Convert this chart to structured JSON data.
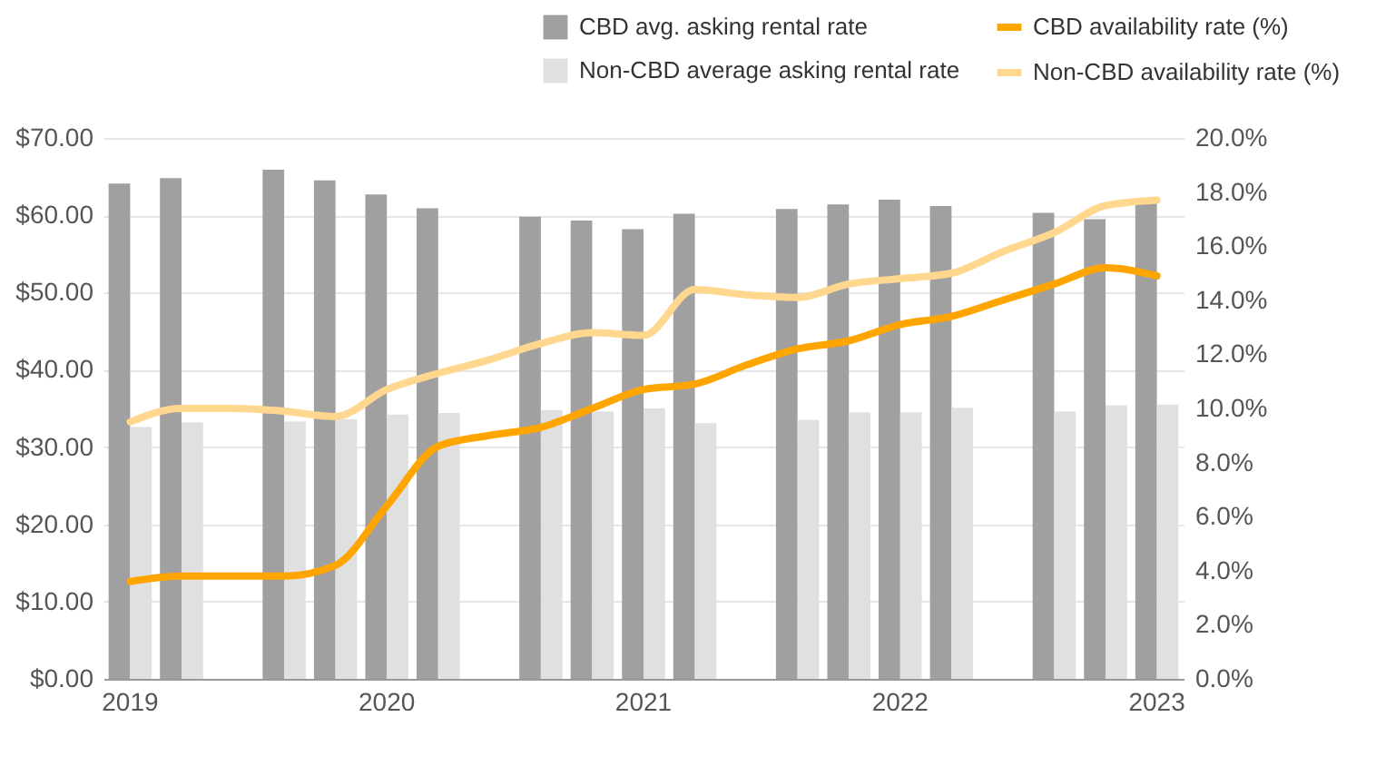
{
  "chart_data": {
    "type": "bar",
    "categories": [
      "2019",
      null,
      null,
      null,
      null,
      "2020",
      null,
      null,
      null,
      null,
      "2021",
      null,
      null,
      null,
      null,
      "2022",
      null,
      null,
      null,
      null,
      "2023"
    ],
    "series": [
      {
        "name": "CBD avg. asking rental rate",
        "color": "#a0a0a0",
        "values": [
          64.1,
          64.8,
          null,
          65.9,
          64.5,
          62.7,
          60.9,
          null,
          59.8,
          59.3,
          58.2,
          60.2,
          null,
          60.8,
          61.4,
          62.0,
          61.2,
          null,
          60.3,
          59.5,
          61.6
        ]
      },
      {
        "name": "Non-CBD average asking rental rate",
        "color": "#e0e0e0",
        "values": [
          32.6,
          33.2,
          null,
          33.3,
          33.6,
          34.2,
          34.4,
          null,
          34.8,
          34.6,
          35.0,
          33.1,
          null,
          33.5,
          34.5,
          34.5,
          35.1,
          null,
          34.6,
          35.4,
          35.5
        ]
      },
      {
        "name": "CBD availability rate (%)",
        "type": "line",
        "axis": "y2",
        "color": "#ffa500",
        "values": [
          3.6,
          3.8,
          3.8,
          3.8,
          4.2,
          6.4,
          8.6,
          9.0,
          9.3,
          10.0,
          10.7,
          10.9,
          11.6,
          12.2,
          12.5,
          13.1,
          13.4,
          14.0,
          14.6,
          15.2,
          14.9
        ]
      },
      {
        "name": "Non-CBD availability rate (%)",
        "type": "line",
        "axis": "y2",
        "color": "#ffd78f",
        "values": [
          9.5,
          10.0,
          10.0,
          9.9,
          9.7,
          10.7,
          11.3,
          11.8,
          12.4,
          12.8,
          12.7,
          14.4,
          14.2,
          14.1,
          14.6,
          14.8,
          15.0,
          15.8,
          16.5,
          17.5,
          17.7
        ]
      }
    ],
    "ylim": [
      0,
      70
    ],
    "yticks": [
      {
        "value": 0,
        "label": "$0.00"
      },
      {
        "value": 10,
        "label": "$10.00"
      },
      {
        "value": 20,
        "label": "$20.00"
      },
      {
        "value": 30,
        "label": "$30.00"
      },
      {
        "value": 40,
        "label": "$40.00"
      },
      {
        "value": 50,
        "label": "$50.00"
      },
      {
        "value": 60,
        "label": "$60.00"
      },
      {
        "value": 70,
        "label": "$70.00"
      }
    ],
    "y2lim": [
      0,
      20
    ],
    "y2ticks": [
      {
        "value": 0,
        "label": "0.0%"
      },
      {
        "value": 2,
        "label": "2.0%"
      },
      {
        "value": 4,
        "label": "4.0%"
      },
      {
        "value": 6,
        "label": "6.0%"
      },
      {
        "value": 8,
        "label": "8.0%"
      },
      {
        "value": 10,
        "label": "10.0%"
      },
      {
        "value": 12,
        "label": "12.0%"
      },
      {
        "value": 14,
        "label": "14.0%"
      },
      {
        "value": 16,
        "label": "16.0%"
      },
      {
        "value": 18,
        "label": "18.0%"
      },
      {
        "value": 20,
        "label": "20.0%"
      }
    ],
    "grid": "y",
    "legend": "top"
  }
}
